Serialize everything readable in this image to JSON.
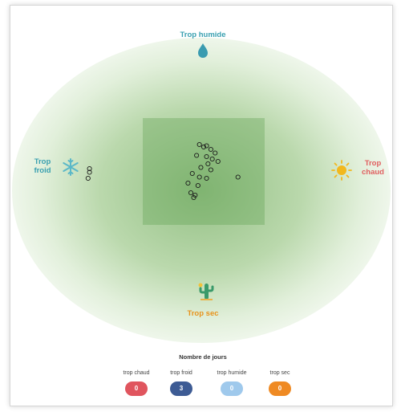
{
  "labels": {
    "humid": "Trop humide",
    "cold_line1": "Trop",
    "cold_line2": "froid",
    "hot_line1": "Trop",
    "hot_line2": "chaud",
    "dry": "Trop sec"
  },
  "icons": {
    "humid": "water-drop-icon",
    "cold": "snowflake-icon",
    "hot": "sun-icon",
    "dry": "cactus-icon"
  },
  "legend": {
    "title": "Nombre de jours",
    "items": [
      {
        "label": "trop chaud",
        "count": "0",
        "color": "#e0555e"
      },
      {
        "label": "trop froid",
        "count": "3",
        "color": "#3d5b94"
      },
      {
        "label": "trop humide",
        "count": "0",
        "color": "#9fc9ec"
      },
      {
        "label": "trop sec",
        "count": "0",
        "color": "#ef8a23"
      }
    ]
  },
  "colors": {
    "humid_text": "#3aa0b0",
    "cold_text": "#3aa0b0",
    "hot_text": "#e06060",
    "dry_text": "#e8931c",
    "zone": "#6aa55a"
  },
  "chart_data": {
    "type": "scatter",
    "title": "",
    "xlabel": "",
    "ylabel": "",
    "note": "Observation days plotted relative to the comfort zone; center square is the ideal zone",
    "series": [
      {
        "points": [
          [
            0.0,
            0.2
          ],
          [
            -0.03,
            0.22
          ],
          [
            0.02,
            0.21
          ],
          [
            0.05,
            0.18
          ],
          [
            0.08,
            0.15
          ],
          [
            -0.05,
            0.13
          ],
          [
            0.02,
            0.12
          ],
          [
            0.06,
            0.1
          ],
          [
            0.1,
            0.08
          ],
          [
            0.03,
            0.06
          ],
          [
            -0.02,
            0.03
          ],
          [
            0.05,
            0.01
          ],
          [
            -0.08,
            -0.02
          ],
          [
            -0.03,
            -0.05
          ],
          [
            0.02,
            -0.06
          ],
          [
            0.24,
            -0.05
          ],
          [
            -0.11,
            -0.1
          ],
          [
            -0.04,
            -0.12
          ],
          [
            -0.09,
            -0.18
          ],
          [
            -0.06,
            -0.2
          ],
          [
            -0.07,
            -0.22
          ],
          [
            -0.8,
            0.02
          ],
          [
            -0.8,
            -0.01
          ],
          [
            -0.81,
            -0.06
          ]
        ]
      }
    ],
    "xlim": [
      -1,
      1
    ],
    "ylim": [
      -1,
      1
    ]
  }
}
